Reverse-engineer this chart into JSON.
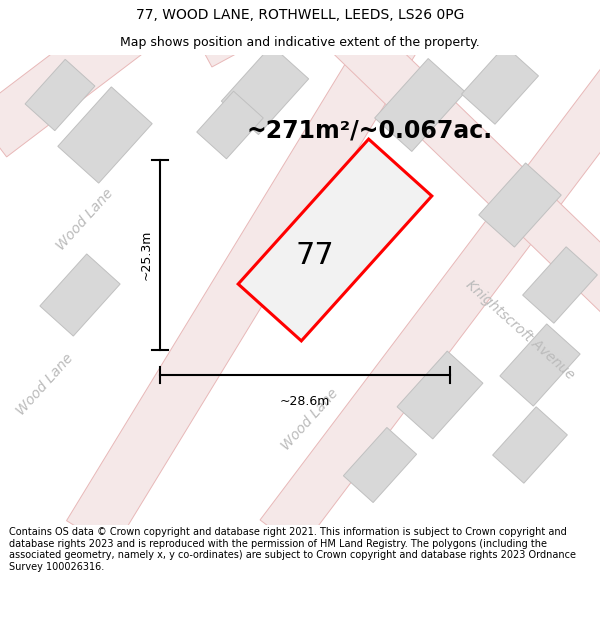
{
  "title_line1": "77, WOOD LANE, ROTHWELL, LEEDS, LS26 0PG",
  "title_line2": "Map shows position and indicative extent of the property.",
  "area_text": "~271m²/~0.067ac.",
  "property_number": "77",
  "dim_vertical": "~25.3m",
  "dim_horizontal": "~28.6m",
  "footer_text": "Contains OS data © Crown copyright and database right 2021. This information is subject to Crown copyright and database rights 2023 and is reproduced with the permission of HM Land Registry. The polygons (including the associated geometry, namely x, y co-ordinates) are subject to Crown copyright and database rights 2023 Ordnance Survey 100026316.",
  "bg_color": "#ffffff",
  "map_bg": "#f2f2f2",
  "road_fill": "#f5e8e8",
  "road_edge": "#e8b8b8",
  "building_fill": "#d8d8d8",
  "building_edge": "#c0c0c0",
  "property_edge": "#ff0000",
  "property_fill": "#f2f2f2",
  "dim_color": "#000000",
  "street_color": "#bbbbbb",
  "title_fontsize": 10,
  "subtitle_fontsize": 9,
  "area_fontsize": 17,
  "prop_num_fontsize": 22,
  "dim_fontsize": 9,
  "street_fontsize": 10,
  "footer_fontsize": 7
}
